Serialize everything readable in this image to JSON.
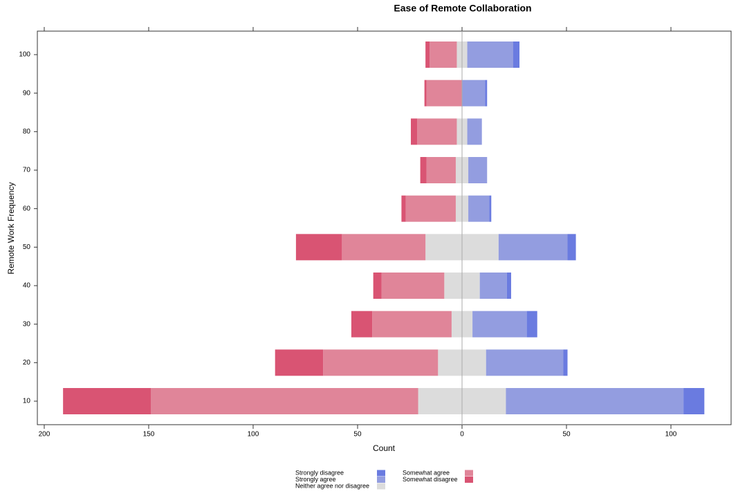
{
  "chart_data": {
    "type": "diverging_bar",
    "title": "Ease of Remote Collaboration",
    "xlabel": "Count",
    "ylabel": "Remote Work Frequency",
    "categories": [
      "10",
      "20",
      "30",
      "40",
      "50",
      "60",
      "70",
      "80",
      "90",
      "100"
    ],
    "series": [
      {
        "name": "Neither agree nor disagree",
        "color": "#dcdcdc",
        "side": "center",
        "values": [
          42,
          23,
          10,
          17,
          35,
          6,
          6,
          5,
          0,
          5
        ]
      },
      {
        "name": "Strongly agree",
        "color": "#939de0",
        "side": "right",
        "values": [
          85,
          37,
          26,
          13,
          33,
          10,
          9,
          7,
          11,
          22
        ]
      },
      {
        "name": "Strongly disagree",
        "color": "#6a7be0",
        "side": "right",
        "values": [
          10,
          2,
          5,
          2,
          4,
          1,
          0,
          0,
          1,
          3
        ]
      },
      {
        "name": "Somewhat agree",
        "color": "#e08599",
        "side": "left",
        "values": [
          128,
          55,
          38,
          30,
          40,
          24,
          14,
          19,
          17,
          13
        ]
      },
      {
        "name": "Somewhat disagree",
        "color": "#d95473",
        "side": "left",
        "values": [
          42,
          23,
          10,
          4,
          22,
          2,
          3,
          3,
          1,
          2
        ]
      }
    ],
    "xlim": [
      -203.3,
      128.8
    ],
    "xticks": [
      {
        "value": -200,
        "label": "200"
      },
      {
        "value": -150,
        "label": "150"
      },
      {
        "value": -100,
        "label": "100"
      },
      {
        "value": -50,
        "label": "50"
      },
      0,
      50,
      100
    ]
  }
}
